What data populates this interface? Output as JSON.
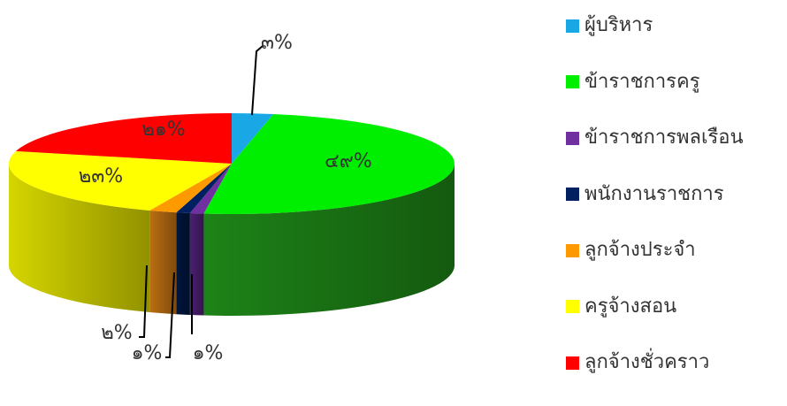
{
  "chart_data": {
    "type": "pie",
    "style": "3d-exploded-depth",
    "slices": [
      {
        "label": "ผู้บริหาร",
        "value": 3,
        "data_label": "๓%",
        "color": "#1aa7e6",
        "side_color": "#0f78a8"
      },
      {
        "label": "ข้าราชการครู",
        "value": 49,
        "data_label": "๔๙%",
        "color": "#00ee00",
        "side_color": "#1f8a18"
      },
      {
        "label": "ข้าราชการพลเรือน",
        "value": 1,
        "data_label": "๑%",
        "color": "#7030a0",
        "side_color": "#502078"
      },
      {
        "label": "พนักงานราชการ",
        "value": 1,
        "data_label": "๑%",
        "color": "#002060",
        "side_color": "#001640"
      },
      {
        "label": "ลูกจ้างประจำ",
        "value": 2,
        "data_label": "๒%",
        "color": "#ff9900",
        "side_color": "#c47412"
      },
      {
        "label": "ครูจ้างสอน",
        "value": 23,
        "data_label": "๒๓%",
        "color": "#ffff00",
        "side_color": "#e0e000"
      },
      {
        "label": "ลูกจ้างชั่วคราว",
        "value": 21,
        "data_label": "๒๑%",
        "color": "#ff0000",
        "side_color": "#b80000"
      }
    ],
    "legend_position": "right"
  }
}
